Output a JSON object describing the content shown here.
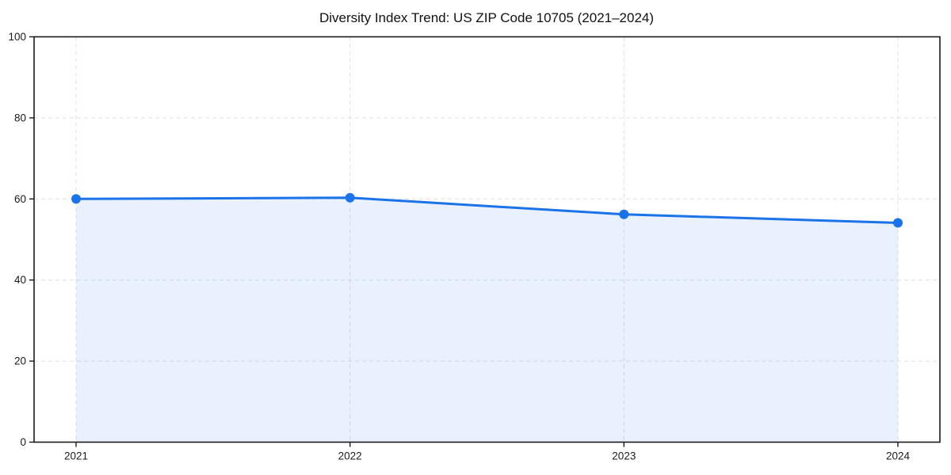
{
  "page": {
    "title": "Diversity Index Trend: US ZIP Code 10705 (2021–2024)"
  },
  "chart_data": {
    "type": "area",
    "title": "Diversity Index Trend: US ZIP Code 10705 (2021–2024)",
    "categories": [
      "2021",
      "2022",
      "2023",
      "2024"
    ],
    "series": [
      {
        "name": "Diversity Index",
        "values": [
          60.0,
          60.3,
          56.2,
          54.1
        ]
      }
    ],
    "xlabel": "",
    "ylabel": "",
    "ylim": [
      0,
      100
    ],
    "yticks": [
      0,
      20,
      40,
      60,
      80,
      100
    ],
    "grid": "dashed",
    "grid_on": true,
    "legend": "none",
    "marker": "circle",
    "colors": {
      "line": "#1a73e8",
      "marker": "#1a73e8",
      "fill": "rgba(26,115,232,0.10)",
      "grid": "#dfdfdf",
      "spine": "#1a1a1a",
      "text": "#111111",
      "background": "#ffffff"
    }
  }
}
